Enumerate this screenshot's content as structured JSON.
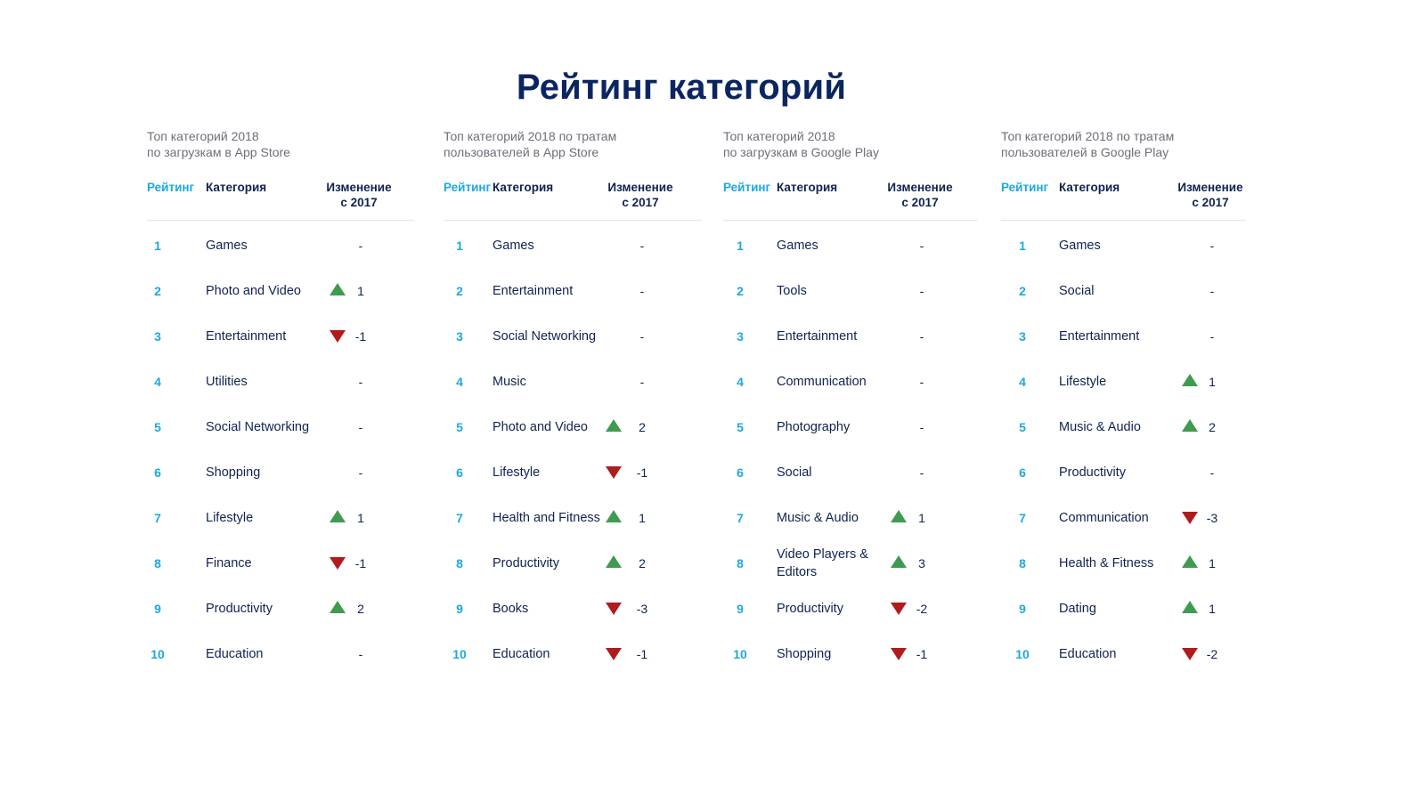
{
  "title": "Рейтинг категорий",
  "headers": {
    "rank": "Рейтинг",
    "category": "Категория",
    "change_line1": "Изменение",
    "change_line2": "с 2017"
  },
  "panels": [
    {
      "subtitle_line1": "Топ категорий 2018",
      "subtitle_line2": "по загрузкам в App Store",
      "rows": [
        {
          "rank": "1",
          "category": "Games",
          "change": "-",
          "trend": "none"
        },
        {
          "rank": "2",
          "category": "Photo and Video",
          "change": "1",
          "trend": "up"
        },
        {
          "rank": "3",
          "category": "Entertainment",
          "change": "-1",
          "trend": "down"
        },
        {
          "rank": "4",
          "category": "Utilities",
          "change": "-",
          "trend": "none"
        },
        {
          "rank": "5",
          "category": "Social Networking",
          "change": "-",
          "trend": "none"
        },
        {
          "rank": "6",
          "category": "Shopping",
          "change": "-",
          "trend": "none"
        },
        {
          "rank": "7",
          "category": "Lifestyle",
          "change": "1",
          "trend": "up"
        },
        {
          "rank": "8",
          "category": "Finance",
          "change": "-1",
          "trend": "down"
        },
        {
          "rank": "9",
          "category": "Productivity",
          "change": "2",
          "trend": "up"
        },
        {
          "rank": "10",
          "category": "Education",
          "change": "-",
          "trend": "none"
        }
      ]
    },
    {
      "subtitle_line1": "Топ категорий 2018 по тратам",
      "subtitle_line2": "пользователей в App Store",
      "rows": [
        {
          "rank": "1",
          "category": "Games",
          "change": "-",
          "trend": "none"
        },
        {
          "rank": "2",
          "category": "Entertainment",
          "change": "-",
          "trend": "none"
        },
        {
          "rank": "3",
          "category": "Social Networking",
          "change": "-",
          "trend": "none"
        },
        {
          "rank": "4",
          "category": "Music",
          "change": "-",
          "trend": "none"
        },
        {
          "rank": "5",
          "category": "Photo and Video",
          "change": "2",
          "trend": "up"
        },
        {
          "rank": "6",
          "category": "Lifestyle",
          "change": "-1",
          "trend": "down"
        },
        {
          "rank": "7",
          "category": "Health and Fitness",
          "change": "1",
          "trend": "up"
        },
        {
          "rank": "8",
          "category": "Productivity",
          "change": "2",
          "trend": "up"
        },
        {
          "rank": "9",
          "category": "Books",
          "change": "-3",
          "trend": "down"
        },
        {
          "rank": "10",
          "category": "Education",
          "change": "-1",
          "trend": "down"
        }
      ]
    },
    {
      "subtitle_line1": "Топ категорий 2018",
      "subtitle_line2": "по загрузкам в Google Play",
      "rows": [
        {
          "rank": "1",
          "category": "Games",
          "change": "-",
          "trend": "none"
        },
        {
          "rank": "2",
          "category": "Tools",
          "change": "-",
          "trend": "none"
        },
        {
          "rank": "3",
          "category": "Entertainment",
          "change": "-",
          "trend": "none"
        },
        {
          "rank": "4",
          "category": "Communication",
          "change": "-",
          "trend": "none"
        },
        {
          "rank": "5",
          "category": "Photography",
          "change": "-",
          "trend": "none"
        },
        {
          "rank": "6",
          "category": "Social",
          "change": "-",
          "trend": "none"
        },
        {
          "rank": "7",
          "category": "Music & Audio",
          "change": "1",
          "trend": "up"
        },
        {
          "rank": "8",
          "category": "Video Players & Editors",
          "change": "3",
          "trend": "up"
        },
        {
          "rank": "9",
          "category": "Productivity",
          "change": "-2",
          "trend": "down"
        },
        {
          "rank": "10",
          "category": "Shopping",
          "change": "-1",
          "trend": "down"
        }
      ]
    },
    {
      "subtitle_line1": "Топ категорий 2018 по тратам",
      "subtitle_line2": "пользователей в Google Play",
      "rows": [
        {
          "rank": "1",
          "category": "Games",
          "change": "-",
          "trend": "none"
        },
        {
          "rank": "2",
          "category": "Social",
          "change": "-",
          "trend": "none"
        },
        {
          "rank": "3",
          "category": "Entertainment",
          "change": "-",
          "trend": "none"
        },
        {
          "rank": "4",
          "category": "Lifestyle",
          "change": "1",
          "trend": "up"
        },
        {
          "rank": "5",
          "category": "Music & Audio",
          "change": "2",
          "trend": "up"
        },
        {
          "rank": "6",
          "category": "Productivity",
          "change": "-",
          "trend": "none"
        },
        {
          "rank": "7",
          "category": "Communication",
          "change": "-3",
          "trend": "down"
        },
        {
          "rank": "8",
          "category": "Health & Fitness",
          "change": "1",
          "trend": "up"
        },
        {
          "rank": "9",
          "category": "Dating",
          "change": "1",
          "trend": "up"
        },
        {
          "rank": "10",
          "category": "Education",
          "change": "-2",
          "trend": "down"
        }
      ]
    }
  ],
  "colors": {
    "title": "#0b2560",
    "rank": "#1fa8dd",
    "up": "#3e9b4f",
    "down": "#b01c1c"
  }
}
